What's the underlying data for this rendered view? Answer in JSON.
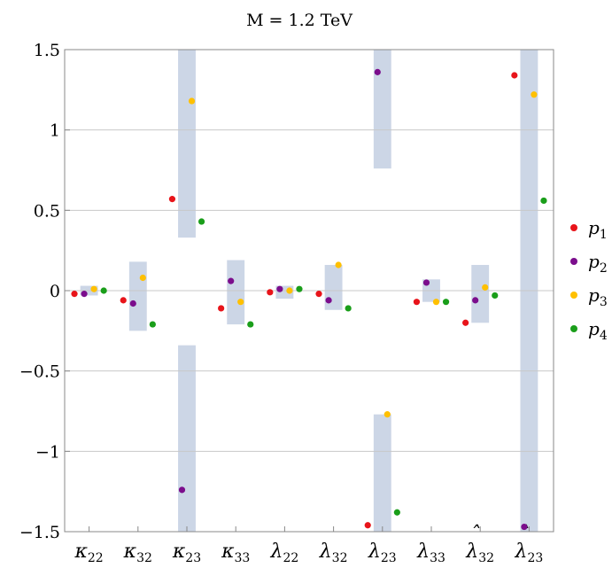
{
  "chart_data": {
    "type": "scatter",
    "title": "M = 1.2 TeV",
    "xlabel": "",
    "ylabel": "",
    "ylim": [
      -1.5,
      1.5
    ],
    "yticks": [
      -1.5,
      -1,
      -0.5,
      0,
      0.5,
      1,
      1.5
    ],
    "ytick_labels": [
      "−1.5",
      "−1",
      "−0.5",
      "0",
      "0.5",
      "1",
      "1.5"
    ],
    "grid": "horizontal",
    "legend_position": "right",
    "categories": [
      {
        "base": "κ",
        "sub": "22",
        "hat": false
      },
      {
        "base": "κ",
        "sub": "32",
        "hat": false
      },
      {
        "base": "κ",
        "sub": "23",
        "hat": false
      },
      {
        "base": "κ",
        "sub": "33",
        "hat": false
      },
      {
        "base": "λ",
        "sub": "22",
        "hat": false
      },
      {
        "base": "λ",
        "sub": "32",
        "hat": false
      },
      {
        "base": "λ",
        "sub": "23",
        "hat": false
      },
      {
        "base": "λ",
        "sub": "33",
        "hat": false
      },
      {
        "base": "λ",
        "sub": "32",
        "hat": true
      },
      {
        "base": "λ",
        "sub": "23",
        "hat": true
      }
    ],
    "allowed_bands": [
      [
        [
          -0.03,
          0.03
        ]
      ],
      [
        [
          -0.25,
          0.18
        ]
      ],
      [
        [
          0.33,
          1.5
        ],
        [
          -1.5,
          -0.34
        ]
      ],
      [
        [
          -0.21,
          0.19
        ]
      ],
      [
        [
          -0.05,
          0.03
        ]
      ],
      [
        [
          -0.12,
          0.16
        ]
      ],
      [
        [
          0.76,
          1.5
        ],
        [
          -1.5,
          -0.77
        ]
      ],
      [
        [
          -0.07,
          0.07
        ]
      ],
      [
        [
          -0.2,
          0.16
        ]
      ],
      [
        [
          -1.5,
          1.5
        ]
      ]
    ],
    "band_color": "#ccd6e6",
    "series": [
      {
        "name": "p",
        "sub": "1",
        "color": "#e8141a",
        "values": [
          -0.02,
          -0.06,
          0.57,
          -0.11,
          -0.01,
          -0.02,
          -1.46,
          -0.07,
          -0.2,
          1.34
        ]
      },
      {
        "name": "p",
        "sub": "2",
        "color": "#7b0d8c",
        "values": [
          -0.02,
          -0.08,
          -1.24,
          0.06,
          0.01,
          -0.06,
          1.36,
          0.05,
          -0.06,
          -1.47
        ]
      },
      {
        "name": "p",
        "sub": "3",
        "color": "#ffc000",
        "values": [
          0.01,
          0.08,
          1.18,
          -0.07,
          0.0,
          0.16,
          -0.77,
          -0.07,
          0.02,
          1.22
        ]
      },
      {
        "name": "p",
        "sub": "4",
        "color": "#1a9e1a",
        "values": [
          0.0,
          -0.21,
          0.43,
          -0.21,
          0.01,
          -0.11,
          -1.38,
          -0.07,
          -0.03,
          0.56
        ]
      }
    ]
  }
}
